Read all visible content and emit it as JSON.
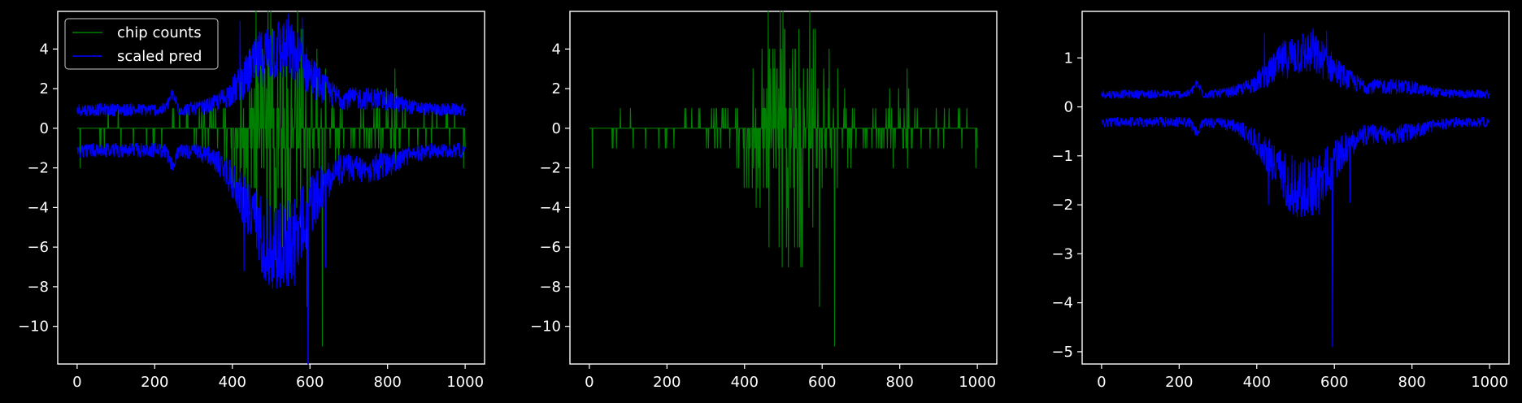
{
  "figure": {
    "background": "#000000",
    "axes_color": "#ffffff"
  },
  "legend": {
    "location": "upper left",
    "entries": [
      {
        "label": "chip counts",
        "color": "#008000"
      },
      {
        "label": "scaled pred",
        "color": "#0000ff"
      }
    ]
  },
  "chart_data": [
    {
      "type": "line",
      "panel": 1,
      "xlim": [
        -50,
        1050
      ],
      "ylim": [
        -11.9,
        5.9
      ],
      "xticks": [
        0,
        200,
        400,
        600,
        800,
        1000
      ],
      "yticks": [
        -10,
        -8,
        -6,
        -4,
        -2,
        0,
        2,
        4
      ],
      "grid": false,
      "legend": "upper left",
      "series": [
        {
          "name": "chip counts",
          "color": "#008000",
          "ref": "chip_counts"
        },
        {
          "name": "scaled pred",
          "color": "#0000ff",
          "ref": "scaled_pred"
        }
      ],
      "notes": "x: 0–1000 (1001 points). chip counts: integers, mostly 0 with ±1 spikes, larger excursions between ~430 and ~650 (max 5 near x≈500, min -11 near x≈632). scaled pred: two mirrored envelopes around 0, widest between ~400 and ~650."
    },
    {
      "type": "line",
      "panel": 2,
      "xlim": [
        -50,
        1050
      ],
      "ylim": [
        -11.9,
        5.9
      ],
      "xticks": [
        0,
        200,
        400,
        600,
        800,
        1000
      ],
      "yticks": [
        -10,
        -8,
        -6,
        -4,
        -2,
        0,
        2,
        4
      ],
      "grid": false,
      "series": [
        {
          "color": "#008000",
          "ref": "chip_counts"
        }
      ]
    },
    {
      "type": "line",
      "panel": 3,
      "xlim": [
        -50,
        1050
      ],
      "ylim": [
        -5.25,
        1.95
      ],
      "xticks": [
        0,
        200,
        400,
        600,
        800,
        1000
      ],
      "yticks": [
        -5,
        -4,
        -3,
        -2,
        -1,
        0,
        1
      ],
      "grid": false,
      "series": [
        {
          "color": "#0000ff",
          "ref": "scaled_pred_upper"
        },
        {
          "color": "#0000ff",
          "ref": "scaled_pred_lower"
        }
      ],
      "notes": "Upper envelope ~0.15 baseline rising to ~1.6 near x≈520–580; lower envelope ~-0.15 baseline, dipping to ~-2 near x≈430 and ~-4.9 near x≈595."
    }
  ]
}
